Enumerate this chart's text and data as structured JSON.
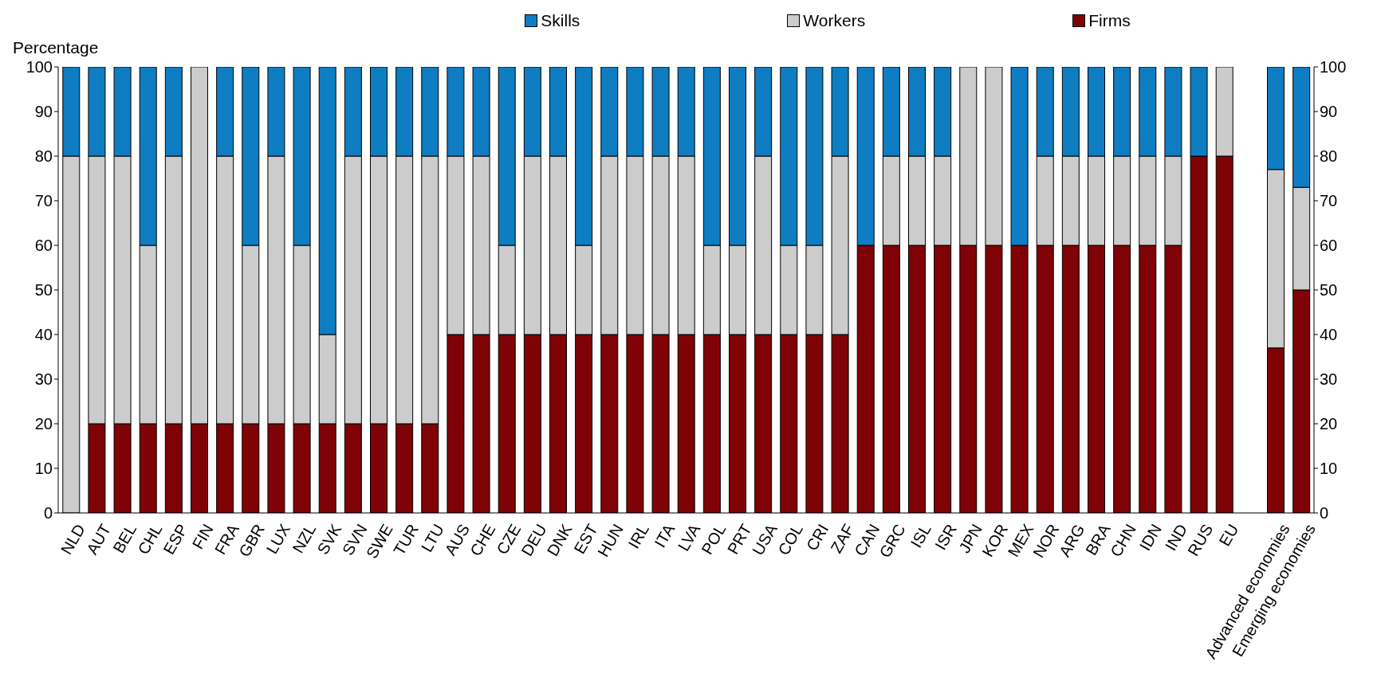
{
  "chart_data": {
    "type": "bar",
    "stacked": true,
    "ylabel": "Percentage",
    "categories": [
      "NLD",
      "AUT",
      "BEL",
      "CHL",
      "ESP",
      "FIN",
      "FRA",
      "GBR",
      "LUX",
      "NZL",
      "SVK",
      "SVN",
      "SWE",
      "TUR",
      "LTU",
      "AUS",
      "CHE",
      "CZE",
      "DEU",
      "DNK",
      "EST",
      "HUN",
      "IRL",
      "ITA",
      "LVA",
      "POL",
      "PRT",
      "USA",
      "COL",
      "CRI",
      "ZAF",
      "CAN",
      "GRC",
      "ISL",
      "ISR",
      "JPN",
      "KOR",
      "MEX",
      "NOR",
      "ARG",
      "BRA",
      "CHN",
      "IDN",
      "IND",
      "RUS",
      "EU",
      null,
      "Advanced economies",
      "Emerging economies"
    ],
    "series": [
      {
        "name": "Firms",
        "color": "#7f0306",
        "values": [
          0,
          20,
          20,
          20,
          20,
          20,
          20,
          20,
          20,
          20,
          20,
          20,
          20,
          20,
          20,
          40,
          40,
          40,
          40,
          40,
          40,
          40,
          40,
          40,
          40,
          40,
          40,
          40,
          40,
          40,
          40,
          60,
          60,
          60,
          60,
          60,
          60,
          60,
          60,
          60,
          60,
          60,
          60,
          60,
          80,
          80,
          null,
          37,
          50
        ]
      },
      {
        "name": "Workers",
        "color": "#cccccc",
        "values": [
          80,
          60,
          60,
          40,
          60,
          80,
          60,
          40,
          60,
          40,
          20,
          60,
          60,
          60,
          60,
          40,
          40,
          20,
          40,
          40,
          20,
          40,
          40,
          40,
          40,
          20,
          20,
          40,
          20,
          20,
          40,
          0,
          20,
          20,
          20,
          40,
          40,
          0,
          20,
          20,
          20,
          20,
          20,
          20,
          0,
          20,
          null,
          40,
          23
        ]
      },
      {
        "name": "Skills",
        "color": "#0f7dc2",
        "values": [
          20,
          20,
          20,
          40,
          20,
          0,
          20,
          40,
          20,
          40,
          60,
          20,
          20,
          20,
          20,
          20,
          20,
          40,
          20,
          20,
          40,
          20,
          20,
          20,
          20,
          40,
          40,
          20,
          40,
          40,
          20,
          40,
          20,
          20,
          20,
          0,
          0,
          40,
          20,
          20,
          20,
          20,
          20,
          20,
          20,
          0,
          null,
          23,
          27
        ]
      }
    ],
    "ylim": [
      0,
      100
    ],
    "yticks": [
      0,
      10,
      20,
      30,
      40,
      50,
      60,
      70,
      80,
      90,
      100
    ],
    "y2lim": [
      0,
      100
    ],
    "y2ticks": [
      0,
      10,
      20,
      30,
      40,
      50,
      60,
      70,
      80,
      90,
      100
    ],
    "legend": "top"
  }
}
